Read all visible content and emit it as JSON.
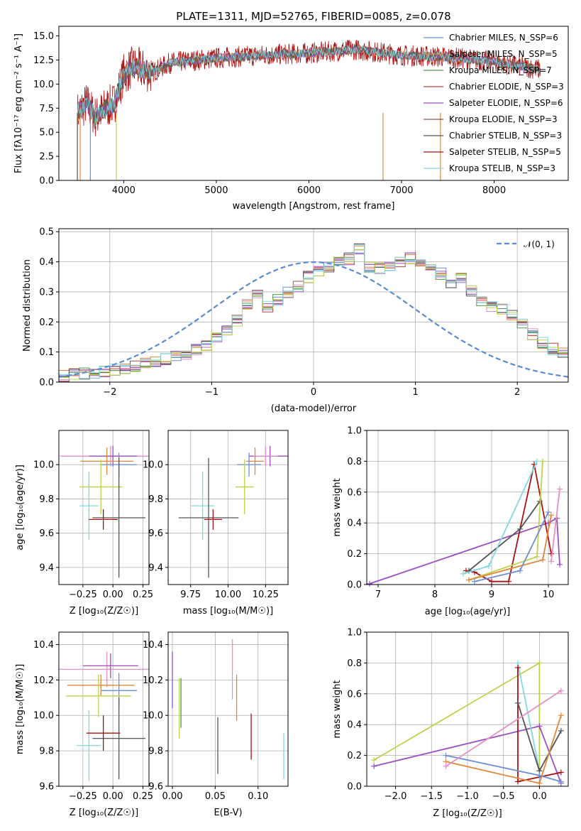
{
  "series_colors": [
    "#6a8fd8",
    "#e0873a",
    "#4a9a4a",
    "#b44444",
    "#9b4fc0",
    "#8c564b",
    "#e68fc6",
    "#555555",
    "#bcd34a",
    "#80d8e0"
  ],
  "sed": {
    "title": "PLATE=1311, MJD=52765, FIBERID=0085, z=0.078",
    "xlabel": "wavelength [Angstrom, rest frame]",
    "ylabel": "Flux [fλ10⁻¹⁷ erg cm⁻² s⁻¹ A⁻¹]",
    "legend": [
      {
        "label": "Chabrier MILES, N_SSP=6",
        "color": "#6a8fd8"
      },
      {
        "label": "Salpeter MILES, N_SSP=5",
        "color": "#e0873a"
      },
      {
        "label": "Kroupa MILES, N_SSP=7",
        "color": "#4a9a4a"
      },
      {
        "label": "Chabrier ELODIE, N_SSP=3",
        "color": "#b44444"
      },
      {
        "label": "Salpeter ELODIE, N_SSP=6",
        "color": "#9b4fc0"
      },
      {
        "label": "Kroupa ELODIE, N_SSP=3",
        "color": "#8c564b"
      },
      {
        "label": "Chabrier STELIB, N_SSP=3",
        "color": "#555555"
      },
      {
        "label": "Salpeter STELIB, N_SSP=5",
        "color": "#aa1111"
      },
      {
        "label": "Kroupa STELIB, N_SSP=3",
        "color": "#80d8e0"
      }
    ]
  },
  "hist": {
    "xlabel": "(data-model)/error",
    "ylabel": "Normed distribution",
    "legend": "𝒩(0, 1)"
  },
  "labels": {
    "age": "age  [log₁₀(age/yr)]",
    "Z": "Z [log₁₀(Z/Z☉)]",
    "mass": "mass [log₁₀(M/M☉)]",
    "mass_weight": "mass weight",
    "ebv": "E(B-V)"
  },
  "chart_data": [
    {
      "type": "line",
      "title": "PLATE=1311, MJD=52765, FIBERID=0085, z=0.078",
      "xlabel": "wavelength [Angstrom, rest frame]",
      "ylabel": "Flux [fλ10⁻¹⁷ erg cm⁻² s⁻¹ A⁻¹]",
      "xlim": [
        3300,
        8800
      ],
      "ylim": [
        0,
        16
      ],
      "xticks": [
        4000,
        5000,
        6000,
        7000,
        8000
      ],
      "yticks": [
        0,
        2.5,
        5,
        7.5,
        10,
        12.5,
        15
      ],
      "x": [
        3500,
        3600,
        3700,
        3800,
        3900,
        4000,
        4100,
        4200,
        4300,
        4500,
        5000,
        5500,
        6000,
        6500,
        7000,
        7500,
        8000,
        8500
      ],
      "y": [
        7.0,
        8.0,
        6.5,
        7.5,
        8.0,
        11.0,
        11.8,
        11.5,
        11.2,
        12.2,
        12.7,
        13.0,
        13.2,
        13.6,
        13.0,
        12.8,
        12.3,
        11.5
      ],
      "legend_position": "upper right"
    },
    {
      "type": "bar",
      "xlabel": "(data-model)/error",
      "ylabel": "Normed distribution",
      "xlim": [
        -2.5,
        2.5
      ],
      "ylim": [
        0,
        0.51
      ],
      "xticks": [
        -2,
        -1,
        0,
        1,
        2
      ],
      "yticks": [
        0,
        0.1,
        0.2,
        0.3,
        0.4,
        0.5
      ],
      "bin_width": 0.1,
      "bin_start": -2.5,
      "values": [
        0.022,
        0.025,
        0.028,
        0.03,
        0.035,
        0.04,
        0.047,
        0.053,
        0.06,
        0.067,
        0.075,
        0.085,
        0.095,
        0.108,
        0.125,
        0.145,
        0.17,
        0.205,
        0.255,
        0.3,
        0.25,
        0.275,
        0.3,
        0.32,
        0.35,
        0.37,
        0.385,
        0.4,
        0.41,
        0.44,
        0.38,
        0.38,
        0.39,
        0.4,
        0.41,
        0.39,
        0.38,
        0.36,
        0.33,
        0.35,
        0.3,
        0.27,
        0.25,
        0.24,
        0.22,
        0.19,
        0.16,
        0.13,
        0.11,
        0.095
      ],
      "reference": {
        "name": "𝒩(0, 1)",
        "mean": 0,
        "sigma": 1
      },
      "legend_position": "upper right"
    },
    {
      "type": "scatter",
      "xlabel": "Z [log₁₀(Z/Z☉)]",
      "ylabel": "age  [log₁₀(age/yr)]",
      "xlim": [
        -0.45,
        0.3
      ],
      "ylim": [
        9.3,
        10.2
      ],
      "xticks": [
        -0.25,
        0,
        0.25
      ],
      "xticklabels": [
        "−0.25",
        "0.00",
        "0.25"
      ],
      "yticks": [
        9.4,
        9.6,
        9.8,
        10.0
      ],
      "points": [
        {
          "x": -0.02,
          "y": 10.05,
          "xerr": 0.42,
          "yerr": 0.06,
          "color": "#e68fc6"
        },
        {
          "x": 0.0,
          "y": 10.05,
          "xerr": 0.2,
          "yerr": 0.06,
          "color": "#9b4fc0"
        },
        {
          "x": -0.05,
          "y": 10.02,
          "xerr": 0.22,
          "yerr": 0.08,
          "color": "#e0873a"
        },
        {
          "x": 0.05,
          "y": 10.0,
          "xerr": 0.15,
          "yerr": 0.07,
          "color": "#6a8fd8"
        },
        {
          "x": -0.1,
          "y": 9.87,
          "xerr": 0.18,
          "yerr": 0.16,
          "color": "#bcd34a"
        },
        {
          "x": -0.2,
          "y": 9.76,
          "xerr": 0.08,
          "yerr": 0.2,
          "color": "#80d8e0"
        },
        {
          "x": 0.05,
          "y": 9.69,
          "xerr": 0.22,
          "yerr": 0.35,
          "color": "#555555"
        },
        {
          "x": -0.08,
          "y": 9.68,
          "xerr": 0.12,
          "yerr": 0.06,
          "color": "#aa1111"
        }
      ]
    },
    {
      "type": "scatter",
      "xlabel": "mass [log₁₀(M/M☉)]",
      "ylabel": "",
      "xlim": [
        9.6,
        10.4
      ],
      "ylim": [
        9.3,
        10.2
      ],
      "xticks": [
        9.75,
        10.0,
        10.25
      ],
      "xticklabels": [
        "9.75",
        "10.00",
        "10.25"
      ],
      "yticks": [
        9.4,
        9.6,
        9.8,
        10.0
      ],
      "points": [
        {
          "x": 10.28,
          "y": 10.05,
          "xerr": 0.14,
          "yerr": 0.06,
          "color": "#9b4fc0"
        },
        {
          "x": 10.25,
          "y": 10.05,
          "xerr": 0.08,
          "yerr": 0.06,
          "color": "#e68fc6"
        },
        {
          "x": 10.18,
          "y": 10.02,
          "xerr": 0.06,
          "yerr": 0.08,
          "color": "#e0873a"
        },
        {
          "x": 10.14,
          "y": 10.0,
          "xerr": 0.08,
          "yerr": 0.07,
          "color": "#6a8fd8"
        },
        {
          "x": 10.11,
          "y": 9.87,
          "xerr": 0.06,
          "yerr": 0.16,
          "color": "#bcd34a"
        },
        {
          "x": 9.83,
          "y": 9.76,
          "xerr": 0.08,
          "yerr": 0.2,
          "color": "#80d8e0"
        },
        {
          "x": 9.87,
          "y": 9.69,
          "xerr": 0.2,
          "yerr": 0.35,
          "color": "#555555"
        },
        {
          "x": 9.9,
          "y": 9.68,
          "xerr": 0.06,
          "yerr": 0.06,
          "color": "#aa1111"
        }
      ]
    },
    {
      "type": "line",
      "xlabel": "age  [log₁₀(age/yr)]",
      "ylabel": "mass weight",
      "xlim": [
        6.8,
        10.35
      ],
      "ylim": [
        0,
        1.0
      ],
      "xticks": [
        7,
        8,
        9,
        10
      ],
      "yticks": [
        0,
        0.2,
        0.4,
        0.6,
        0.8,
        1.0
      ],
      "series": [
        {
          "color": "#9b4fc0",
          "x": [
            6.85,
            10.0,
            10.15,
            10.2
          ],
          "y": [
            0.005,
            0.4,
            0.43,
            0.13
          ]
        },
        {
          "color": "#aa1111",
          "x": [
            8.55,
            8.7,
            9.0,
            9.3,
            9.75,
            10.05
          ],
          "y": [
            0.09,
            0.08,
            0.02,
            0.02,
            0.78,
            0.2
          ]
        },
        {
          "color": "#555555",
          "x": [
            8.6,
            9.5,
            9.85
          ],
          "y": [
            0.09,
            0.36,
            0.54
          ]
        },
        {
          "color": "#80d8e0",
          "x": [
            8.5,
            8.95,
            9.8
          ],
          "y": [
            0.07,
            0.12,
            0.8
          ]
        },
        {
          "color": "#bcd34a",
          "x": [
            8.6,
            9.8,
            9.9
          ],
          "y": [
            0.03,
            0.18,
            0.8
          ]
        },
        {
          "color": "#e0873a",
          "x": [
            8.6,
            9.9,
            10.05
          ],
          "y": [
            0.03,
            0.16,
            0.45
          ]
        },
        {
          "color": "#6a8fd8",
          "x": [
            8.7,
            9.5,
            10.0
          ],
          "y": [
            0.02,
            0.09,
            0.47
          ]
        },
        {
          "color": "#e68fc6",
          "x": [
            10.05,
            10.2
          ],
          "y": [
            0.15,
            0.62
          ]
        }
      ]
    },
    {
      "type": "scatter",
      "xlabel": "Z [log₁₀(Z/Z☉)]",
      "ylabel": "mass [log₁₀(M/M☉)]",
      "xlim": [
        -0.45,
        0.3
      ],
      "ylim": [
        9.6,
        10.47
      ],
      "xticks": [
        -0.25,
        0,
        0.25
      ],
      "xticklabels": [
        "−0.25",
        "0.00",
        "0.25"
      ],
      "yticks": [
        9.6,
        9.8,
        10.0,
        10.2,
        10.4
      ],
      "points": [
        {
          "x": -0.05,
          "y": 10.26,
          "xerr": 0.4,
          "yerr": 0.1,
          "color": "#e68fc6"
        },
        {
          "x": -0.02,
          "y": 10.28,
          "xerr": 0.23,
          "yerr": 0.07,
          "color": "#9b4fc0"
        },
        {
          "x": -0.1,
          "y": 10.17,
          "xerr": 0.28,
          "yerr": 0.06,
          "color": "#e0873a"
        },
        {
          "x": 0.05,
          "y": 10.14,
          "xerr": 0.15,
          "yerr": 0.1,
          "color": "#6a8fd8"
        },
        {
          "x": -0.12,
          "y": 10.11,
          "xerr": 0.27,
          "yerr": 0.12,
          "color": "#bcd34a"
        },
        {
          "x": -0.2,
          "y": 9.83,
          "xerr": 0.1,
          "yerr": 0.2,
          "color": "#80d8e0"
        },
        {
          "x": 0.05,
          "y": 9.87,
          "xerr": 0.22,
          "yerr": 0.23,
          "color": "#555555"
        },
        {
          "x": -0.08,
          "y": 9.9,
          "xerr": 0.14,
          "yerr": 0.1,
          "color": "#aa1111"
        }
      ]
    },
    {
      "type": "scatter",
      "xlabel": "E(B-V)",
      "ylabel": "",
      "xlim": [
        -0.005,
        0.135
      ],
      "ylim": [
        9.6,
        10.47
      ],
      "xticks": [
        0,
        0.05,
        0.1
      ],
      "xticklabels": [
        "0.00",
        "0.05",
        "0.10"
      ],
      "yticks": [
        9.6,
        9.8,
        10.0,
        10.2,
        10.4
      ],
      "points": [
        {
          "x": 0.0,
          "y": 10.2,
          "xerr": 0,
          "yerr": 0.16,
          "color": "#9b4fc0"
        },
        {
          "x": 0.008,
          "y": 10.04,
          "xerr": 0,
          "yerr": 0.17,
          "color": "#bcd34a"
        },
        {
          "x": 0.01,
          "y": 10.07,
          "xerr": 0,
          "yerr": 0.14,
          "color": "#4a9a4a"
        },
        {
          "x": 0.053,
          "y": 9.83,
          "xerr": 0,
          "yerr": 0.16,
          "color": "#555555"
        },
        {
          "x": 0.07,
          "y": 10.26,
          "xerr": 0,
          "yerr": 0.17,
          "color": "#e68fc6"
        },
        {
          "x": 0.075,
          "y": 10.1,
          "xerr": 0,
          "yerr": 0.13,
          "color": "#e0873a"
        },
        {
          "x": 0.092,
          "y": 9.88,
          "xerr": 0,
          "yerr": 0.13,
          "color": "#aa1111"
        },
        {
          "x": 0.13,
          "y": 9.77,
          "xerr": 0,
          "yerr": 0.13,
          "color": "#80d8e0"
        }
      ]
    },
    {
      "type": "line",
      "xlabel": "Z [log₁₀(Z/Z☉)]",
      "ylabel": "mass weight",
      "xlim": [
        -2.4,
        0.4
      ],
      "ylim": [
        0,
        1.0
      ],
      "xticks": [
        -2,
        -1.5,
        -1,
        -0.5,
        0
      ],
      "xticklabels": [
        "−2.0",
        "−1.5",
        "−1.0",
        "−0.5",
        "0.0"
      ],
      "yticks": [
        0,
        0.2,
        0.4,
        0.6,
        0.8,
        1.0
      ],
      "series": [
        {
          "color": "#bcd34a",
          "x": [
            -2.3,
            0.0,
            0.0
          ],
          "y": [
            0.17,
            0.8,
            0.1
          ]
        },
        {
          "color": "#9b4fc0",
          "x": [
            -2.3,
            0.0,
            0.3
          ],
          "y": [
            0.13,
            0.39,
            0.02
          ]
        },
        {
          "color": "#80d8e0",
          "x": [
            -0.3,
            0.0,
            0.0
          ],
          "y": [
            0.8,
            0.1,
            0.02
          ]
        },
        {
          "color": "#aa1111",
          "x": [
            -0.3,
            -0.3,
            0.3
          ],
          "y": [
            0.77,
            0.03,
            0.09
          ]
        },
        {
          "color": "#555555",
          "x": [
            -0.3,
            0.0,
            0.3
          ],
          "y": [
            0.54,
            0.1,
            0.36
          ]
        },
        {
          "color": "#6a8fd8",
          "x": [
            -1.3,
            0.0,
            0.3
          ],
          "y": [
            0.2,
            0.07,
            0.03
          ]
        },
        {
          "color": "#e0873a",
          "x": [
            -1.3,
            0.0,
            0.3
          ],
          "y": [
            0.16,
            0.02,
            0.46
          ]
        },
        {
          "color": "#e68fc6",
          "x": [
            -1.3,
            0.3
          ],
          "y": [
            0.13,
            0.62
          ]
        }
      ]
    }
  ]
}
